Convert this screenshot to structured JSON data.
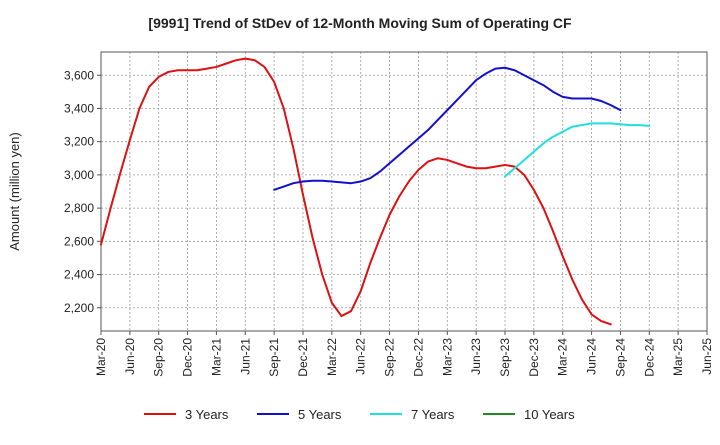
{
  "chart_data": {
    "type": "line",
    "title": "[9991]  Trend of StDev of 12-Month Moving Sum of Operating CF",
    "xlabel": "",
    "ylabel": "Amount (million yen)",
    "x_ticks": [
      "Mar-20",
      "Jun-20",
      "Sep-20",
      "Dec-20",
      "Mar-21",
      "Jun-21",
      "Sep-21",
      "Dec-21",
      "Mar-22",
      "Jun-22",
      "Sep-22",
      "Dec-22",
      "Mar-23",
      "Jun-23",
      "Sep-23",
      "Dec-23",
      "Mar-24",
      "Jun-24",
      "Sep-24",
      "Dec-24",
      "Mar-25",
      "Jun-25"
    ],
    "y_ticks": [
      2200,
      2400,
      2600,
      2800,
      3000,
      3200,
      3400,
      3600
    ],
    "ylim": [
      2060,
      3740
    ],
    "grid": true,
    "legend_position": "bottom",
    "series": [
      {
        "name": "3 Years",
        "color": "#dd1111",
        "x_start": "Mar-20",
        "values": [
          2580,
          2800,
          3010,
          3210,
          3400,
          3530,
          3590,
          3620,
          3630,
          3630,
          3630,
          3640,
          3650,
          3670,
          3690,
          3700,
          3690,
          3650,
          3560,
          3400,
          3160,
          2880,
          2620,
          2400,
          2230,
          2150,
          2180,
          2300,
          2470,
          2620,
          2760,
          2870,
          2960,
          3030,
          3080,
          3100,
          3090,
          3070,
          3050,
          3040,
          3040,
          3050,
          3060,
          3050,
          3000,
          2910,
          2800,
          2660,
          2510,
          2370,
          2250,
          2160,
          2120,
          2100
        ]
      },
      {
        "name": "5 Years",
        "color": "#1111cc",
        "x_start": "Sep-21",
        "values": [
          2910,
          2930,
          2950,
          2960,
          2965,
          2965,
          2960,
          2955,
          2950,
          2960,
          2980,
          3020,
          3070,
          3120,
          3170,
          3220,
          3270,
          3330,
          3390,
          3450,
          3510,
          3570,
          3610,
          3640,
          3645,
          3630,
          3600,
          3570,
          3540,
          3500,
          3470,
          3460,
          3460,
          3460,
          3445,
          3420,
          3390
        ]
      },
      {
        "name": "7 Years",
        "color": "#22dddd",
        "x_start": "Sep-23",
        "values": [
          2990,
          3040,
          3090,
          3140,
          3190,
          3230,
          3260,
          3290,
          3300,
          3310,
          3310,
          3310,
          3305,
          3300,
          3300,
          3295
        ]
      },
      {
        "name": "10 Years",
        "color": "#228822",
        "x_start": "Mar-25",
        "values": []
      }
    ]
  }
}
